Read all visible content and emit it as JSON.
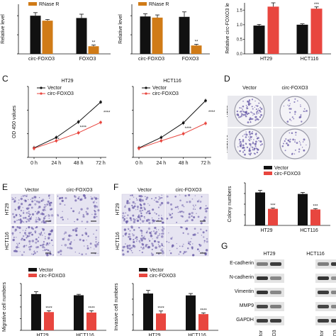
{
  "colors": {
    "black": "#111111",
    "orange": "#d07b17",
    "red": "#e8463f",
    "stain": "#6a5ca8",
    "band": "#2a2a2a"
  },
  "chart_data": [
    {
      "id": "rnase",
      "type": "bar",
      "ylabel": "Relative level",
      "categories": [
        "circ-FOXO3",
        "FOXO3"
      ],
      "legend": [
        "RNase R"
      ],
      "series": [
        {
          "values": [
            1.0,
            0.94
          ],
          "err": [
            0.08,
            0.1
          ]
        },
        {
          "name": "RNase R",
          "values": [
            0.87,
            0.2
          ],
          "err": [
            0.03,
            0.03
          ]
        }
      ],
      "sig": [
        "",
        "**"
      ]
    },
    {
      "id": "rnase2",
      "type": "bar",
      "ylabel": "Relative level",
      "categories": [
        "circ-FOXO3",
        "FOXO3"
      ],
      "legend": [
        "RNase R"
      ],
      "series": [
        {
          "values": [
            0.98,
            0.97
          ],
          "err": [
            0.07,
            0.13
          ]
        },
        {
          "name": "RNase R",
          "values": [
            0.95,
            0.22
          ],
          "err": [
            0.07,
            0.03
          ]
        }
      ],
      "sig": [
        "",
        "**"
      ]
    },
    {
      "id": "circ_level",
      "type": "bar",
      "ylabel": "Relative circ-FOXO3 le",
      "categories": [
        "HT29",
        "HCT116"
      ],
      "yticks": [
        "0.0",
        "0.5",
        "1.0",
        "1.5"
      ],
      "ylim": [
        0,
        1.75
      ],
      "series": [
        {
          "values": [
            0.97,
            1.0
          ],
          "err": [
            0.04,
            0.03
          ]
        },
        {
          "values": [
            1.62,
            1.55
          ],
          "err": [
            0.13,
            0.06
          ]
        }
      ],
      "sig": [
        "",
        "***"
      ]
    },
    {
      "id": "cck8_ht29",
      "type": "line",
      "title": "HT29",
      "ylabel": "OD 450 values",
      "x": [
        "0 h",
        "24 h",
        "48 h",
        "72 h"
      ],
      "legend": [
        "Vector",
        "circ-FOXO3"
      ],
      "series": [
        {
          "name": "Vector",
          "values": [
            0.2,
            0.42,
            0.75,
            1.17
          ]
        },
        {
          "name": "circ-FOXO3",
          "values": [
            0.19,
            0.35,
            0.52,
            0.74
          ]
        }
      ],
      "sig": [
        "",
        "*",
        "****",
        "****"
      ]
    },
    {
      "id": "cck8_hct116",
      "type": "line",
      "title": "HCT116",
      "x": [
        "0 h",
        "24 h",
        "48 h",
        "72 h"
      ],
      "legend": [
        "Vector",
        "circ-FOXO3"
      ],
      "series": [
        {
          "name": "Vector",
          "values": [
            0.2,
            0.42,
            0.73,
            1.2
          ]
        },
        {
          "name": "circ-FOXO3",
          "values": [
            0.19,
            0.35,
            0.5,
            0.72
          ]
        }
      ],
      "sig": [
        "",
        "",
        "****",
        "****"
      ]
    },
    {
      "id": "colony",
      "type": "bar",
      "ylabel": "Colony numbers",
      "categories": [
        "HT29",
        "HCT116"
      ],
      "legend": [
        "Vector",
        "circ-FOXO3"
      ],
      "series": [
        {
          "name": "Vector",
          "values": [
            155,
            148
          ],
          "err": [
            10,
            7
          ]
        },
        {
          "name": "circ-FOXO3",
          "values": [
            78,
            75
          ],
          "err": [
            4,
            4
          ]
        }
      ],
      "sig": [
        "***",
        "***"
      ]
    },
    {
      "id": "migration",
      "type": "bar",
      "ylabel": "Migrative cell numbers",
      "categories": [
        "HT29",
        "HCT116"
      ],
      "legend": [
        "Vector",
        "circ-FOXO3"
      ],
      "series": [
        {
          "name": "Vector",
          "values": [
            155,
            150
          ],
          "err": [
            10,
            4
          ]
        },
        {
          "name": "circ-FOXO3",
          "values": [
            78,
            76
          ],
          "err": [
            6,
            8
          ]
        }
      ],
      "sig": [
        "****",
        "****"
      ]
    },
    {
      "id": "invasion",
      "type": "bar",
      "ylabel": "Invasive cell numbers",
      "categories": [
        "HT29",
        "HCT116"
      ],
      "legend": [
        "Vector",
        "circ-FOXO3"
      ],
      "series": [
        {
          "name": "Vector",
          "values": [
            118,
            112
          ],
          "err": [
            10,
            6
          ]
        },
        {
          "name": "circ-FOXO3",
          "values": [
            54,
            52
          ],
          "err": [
            8,
            4
          ]
        }
      ],
      "sig": [
        "****",
        "****"
      ]
    }
  ],
  "panels": {
    "C": "C",
    "D": "D",
    "E": "E",
    "F": "F",
    "G": "G"
  },
  "image_labels": {
    "vector": "Vector",
    "circ": "circ-FOXO3",
    "ht29": "HT29",
    "hct116": "HCT116"
  },
  "western": {
    "groups": [
      "HT29",
      "HCT116"
    ],
    "proteins": [
      "E-cadherin",
      "N-cadherin",
      "Vimentin",
      "MMP9",
      "GAPDH"
    ],
    "lanes": [
      "tor",
      "O3",
      "tor",
      "O3"
    ],
    "intensities": [
      [
        0.55,
        0.9,
        0.55,
        0.9
      ],
      [
        0.95,
        0.5,
        0.95,
        0.45
      ],
      [
        0.95,
        0.5,
        0.9,
        0.5
      ],
      [
        0.85,
        0.55,
        0.85,
        0.5
      ],
      [
        0.9,
        0.9,
        0.9,
        0.9
      ]
    ]
  }
}
